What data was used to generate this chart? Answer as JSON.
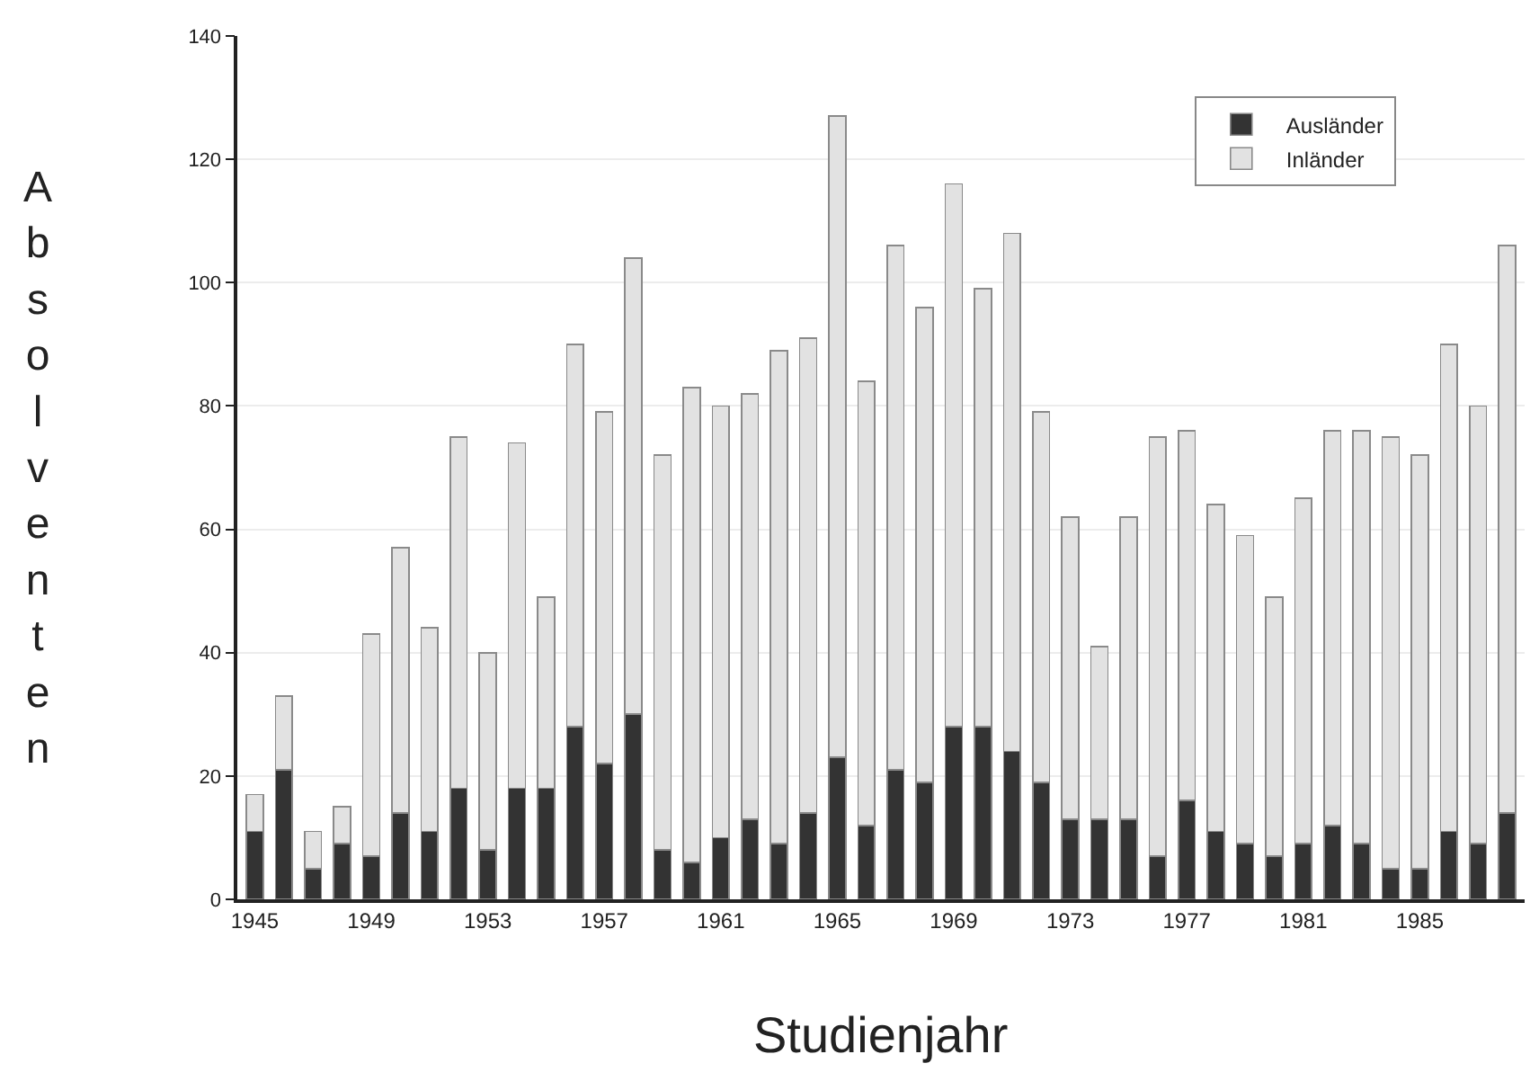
{
  "chart_data": {
    "type": "bar",
    "stacked": true,
    "xlabel": "Studienjahr",
    "ylabel": "Absolventen",
    "categories": [
      "1945",
      null,
      null,
      null,
      "1949",
      null,
      null,
      null,
      "1953",
      null,
      null,
      null,
      "1957",
      null,
      null,
      null,
      "1961",
      null,
      null,
      null,
      "1965",
      null,
      null,
      null,
      "1969",
      null,
      null,
      null,
      "1973",
      null,
      null,
      null,
      "1977",
      null,
      null,
      null,
      "1981",
      null,
      null,
      null,
      "1985",
      null,
      null,
      null
    ],
    "series": [
      {
        "name": "Ausländer",
        "color": "#333333",
        "values": [
          11,
          21,
          5,
          9,
          7,
          14,
          11,
          18,
          8,
          18,
          18,
          28,
          22,
          30,
          8,
          6,
          10,
          13,
          9,
          14,
          23,
          12,
          21,
          19,
          28,
          28,
          24,
          19,
          13,
          13,
          13,
          7,
          16,
          11,
          9,
          7,
          9,
          12,
          9,
          5,
          5,
          11,
          9,
          14
        ]
      },
      {
        "name": "Inländer",
        "color": "#e2e2e2",
        "values": [
          6,
          12,
          6,
          6,
          36,
          43,
          33,
          57,
          32,
          56,
          31,
          62,
          57,
          74,
          64,
          77,
          70,
          69,
          80,
          77,
          104,
          72,
          85,
          77,
          88,
          71,
          84,
          60,
          49,
          28,
          49,
          68,
          60,
          53,
          50,
          42,
          56,
          64,
          67,
          70,
          67,
          79,
          71,
          92
        ]
      }
    ],
    "ylim": [
      0,
      140
    ],
    "yticks": [
      0,
      20,
      40,
      60,
      80,
      100,
      120,
      140
    ],
    "grid": "y",
    "legend": "top right"
  }
}
